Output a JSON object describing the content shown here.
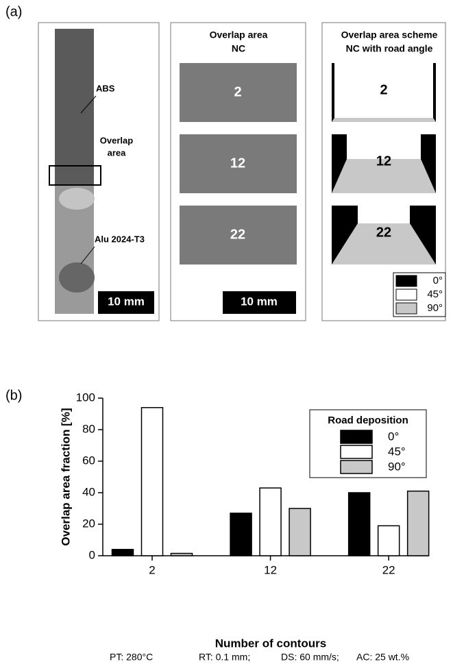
{
  "panel_a": {
    "label": "(a)",
    "photo": {
      "abs": "ABS",
      "overlap": [
        "Overlap",
        "area"
      ],
      "alu": "Alu 2024-T3",
      "scale": "10 mm"
    },
    "nc_photos": {
      "title": [
        "Overlap area",
        "NC"
      ],
      "labels": [
        "2",
        "12",
        "22"
      ],
      "scale": "10 mm"
    },
    "scheme": {
      "title": [
        "Overlap area scheme",
        "NC with road angle"
      ],
      "labels": [
        "2",
        "12",
        "22"
      ],
      "legend": [
        "0°",
        "45°",
        "90°"
      ]
    }
  },
  "chart_data": {
    "type": "bar",
    "label": "(b)",
    "y_label": "Overlap area fraction [%]",
    "x_label": "Number of contours",
    "categories": [
      "2",
      "12",
      "22"
    ],
    "series": [
      {
        "name": "0°",
        "color": "#000000",
        "values": [
          4,
          27,
          40
        ]
      },
      {
        "name": "45°",
        "color": "#ffffff",
        "values": [
          94,
          43,
          19
        ]
      },
      {
        "name": "90°",
        "color": "#c8c8c8",
        "values": [
          1.5,
          30,
          41
        ]
      }
    ],
    "ylim": [
      0,
      100
    ],
    "yticks": [
      0,
      20,
      40,
      60,
      80,
      100
    ],
    "legend_title": "Road deposition",
    "legend": "upper right",
    "footnote": [
      "PT: 280°C",
      "RT: 0.1 mm;",
      "DS: 60 mm/s;",
      "AC: 25 wt.%"
    ]
  }
}
